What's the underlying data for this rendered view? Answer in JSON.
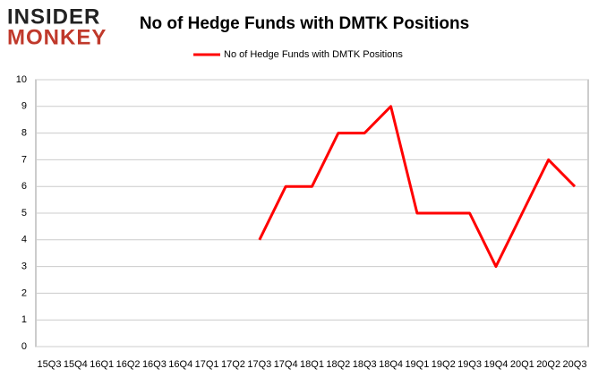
{
  "logo": {
    "line1": "INSIDER",
    "line2": "MONKEY"
  },
  "chart_data": {
    "type": "line",
    "title": "No of Hedge Funds with DMTK Positions",
    "categories": [
      "15Q3",
      "15Q4",
      "16Q1",
      "16Q2",
      "16Q3",
      "16Q4",
      "17Q1",
      "17Q2",
      "17Q3",
      "17Q4",
      "18Q1",
      "18Q2",
      "18Q3",
      "18Q4",
      "19Q1",
      "19Q2",
      "19Q3",
      "19Q4",
      "20Q1",
      "20Q2",
      "20Q3"
    ],
    "series": [
      {
        "name": "No of Hedge Funds with DMTK Positions",
        "color": "#ff0000",
        "values": [
          null,
          null,
          null,
          null,
          null,
          null,
          null,
          null,
          4,
          6,
          6,
          8,
          8,
          9,
          5,
          5,
          5,
          3,
          5,
          7,
          6
        ]
      }
    ],
    "ylim": [
      0,
      10
    ],
    "yticks": [
      0,
      1,
      2,
      3,
      4,
      5,
      6,
      7,
      8,
      9,
      10
    ],
    "grid": true,
    "legend": "top"
  }
}
